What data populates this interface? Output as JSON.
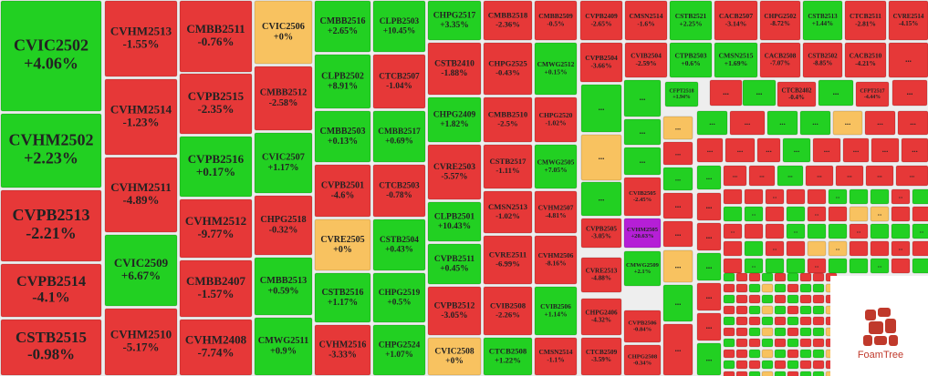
{
  "chart_data": {
    "type": "treemap",
    "categories": [
      "CVIC2502",
      "CVHM2502",
      "CVPB2513",
      "CVPB2514",
      "CSTB2515",
      "CVHM2513",
      "CVHM2514",
      "CVHM2511",
      "CVIC2509",
      "CVHM2510",
      "CMBB2511",
      "CVPB2515",
      "CVPB2516",
      "CVHM2512",
      "CMBB2407",
      "CVHM2408",
      "CVIC2506",
      "CMBB2512",
      "CVIC2507",
      "CHPG2518",
      "CMBB2513",
      "CMWG2511",
      "CMBB2516",
      "CLPB2503",
      "CLPB2502",
      "CTCB2507",
      "CMBB2503",
      "CMBB2517",
      "CVPB2501",
      "CTCB2503",
      "CVRE2505",
      "CSTB2504",
      "CSTB2516",
      "CHPG2519",
      "CVHM2516",
      "CHPG2524",
      "CHPG2517",
      "CMBB2518",
      "CMBB2509",
      "CSTB2410",
      "CHPG2525",
      "CMWG2512",
      "CHPG2409",
      "CMBB2510",
      "CHPG2520",
      "CVRE2503",
      "CSTB2517",
      "CMWG2505",
      "CLPB2501",
      "CMSN2513",
      "CVHM2507",
      "CVPB2511",
      "CVRE2511",
      "CVHM2506",
      "CVPB2512",
      "CVIB2508",
      "CVIB2506",
      "CVIC2508",
      "CTCB2508",
      "CMSN2514",
      "CVPB2409",
      "CMSN2514",
      "CSTB2521",
      "CACB2507",
      "CHPG2502",
      "CSTB2513",
      "CTCB2511",
      "CVRE2514",
      "CVPB2504",
      "CVIB2504",
      "CTPB2503",
      "CMSN2515",
      "CACB2508",
      "CSTB2502",
      "CACB2510",
      "CFPT2518",
      "CTCB2402",
      "CFPT2517",
      "CVIB2505",
      "CVPB2505",
      "CVHM2505",
      "CMWG2509",
      "CVRE2513",
      "CHPG2406",
      "CVPB2506",
      "CTCB2509",
      "CHPG2508"
    ],
    "values": [
      4.06,
      2.23,
      -2.21,
      -4.1,
      -0.98,
      -1.55,
      -1.23,
      -4.89,
      6.67,
      -5.17,
      -0.76,
      -2.35,
      0.17,
      -9.77,
      -1.57,
      -7.74,
      0,
      -2.58,
      1.17,
      -0.32,
      0.59,
      0.9,
      2.65,
      10.45,
      8.91,
      -1.04,
      0.13,
      0.69,
      -4.6,
      -0.78,
      0,
      0.43,
      1.17,
      0.5,
      -3.33,
      1.07,
      3.35,
      -2.36,
      -0.5,
      -1.88,
      -0.43,
      0.15,
      1.82,
      -2.5,
      -1.02,
      -5.57,
      -1.11,
      7.05,
      10.43,
      -1.02,
      -4.81,
      0.45,
      -6.99,
      -8.16,
      -3.05,
      -2.26,
      1.14,
      0,
      1.22,
      -1.1,
      -2.65,
      -1.6,
      2.25,
      -3.14,
      -8.72,
      1.44,
      -2.81,
      -4.15,
      -3.66,
      -2.59,
      0.6,
      1.69,
      -7.07,
      -8.85,
      -4.21,
      1.94,
      -0.4,
      -4.44,
      -2.45,
      -3.05,
      20.63,
      2.1,
      -4.88,
      -4.32,
      -0.84,
      -3.59,
      -0.34
    ],
    "value_labels": [
      "+4.06%",
      "+2.23%",
      "-2.21%",
      "-4.1%",
      "-0.98%",
      "-1.55%",
      "-1.23%",
      "-4.89%",
      "+6.67%",
      "-5.17%",
      "-0.76%",
      "-2.35%",
      "+0.17%",
      "-9.77%",
      "-1.57%",
      "-7.74%",
      "+0%",
      "-2.58%",
      "+1.17%",
      "-0.32%",
      "+0.59%",
      "+0.9%",
      "+2.65%",
      "+10.45%",
      "+8.91%",
      "-1.04%",
      "+0.13%",
      "+0.69%",
      "-4.6%",
      "-0.78%",
      "+0%",
      "+0.43%",
      "+1.17%",
      "+0.5%",
      "-3.33%",
      "+1.07%",
      "+3.35%",
      "-2.36%",
      "-0.5%",
      "-1.88%",
      "-0.43%",
      "+0.15%",
      "+1.82%",
      "-2.5%",
      "-1.02%",
      "-5.57%",
      "-1.11%",
      "+7.05%",
      "+10.43%",
      "-1.02%",
      "-4.81%",
      "+0.45%",
      "-6.99%",
      "-8.16%",
      "-3.05%",
      "-2.26%",
      "+1.14%",
      "+0%",
      "+1.22%",
      "-1.1%",
      "-2.65%",
      "-1.6%",
      "+2.25%",
      "-3.14%",
      "-8.72%",
      "+1.44%",
      "-2.81%",
      "-4.15%",
      "-3.66%",
      "-2.59%",
      "+0.6%",
      "+1.69%",
      "-7.07%",
      "-8.85%",
      "-4.21%",
      "+1.94%",
      "-0.4%",
      "-4.44%",
      "-2.45%",
      "-3.05%",
      "+20.63%",
      "+2.1%",
      "-4.88%",
      "-4.32%",
      "-0.84%",
      "-3.59%",
      "-0.34%"
    ],
    "colors": {
      "up": "#22d022",
      "down": "#e63838",
      "flat": "#f8c260",
      "ceiling": "#b51fd6"
    },
    "overflow_label": "...",
    "branding": "FoamTree"
  }
}
